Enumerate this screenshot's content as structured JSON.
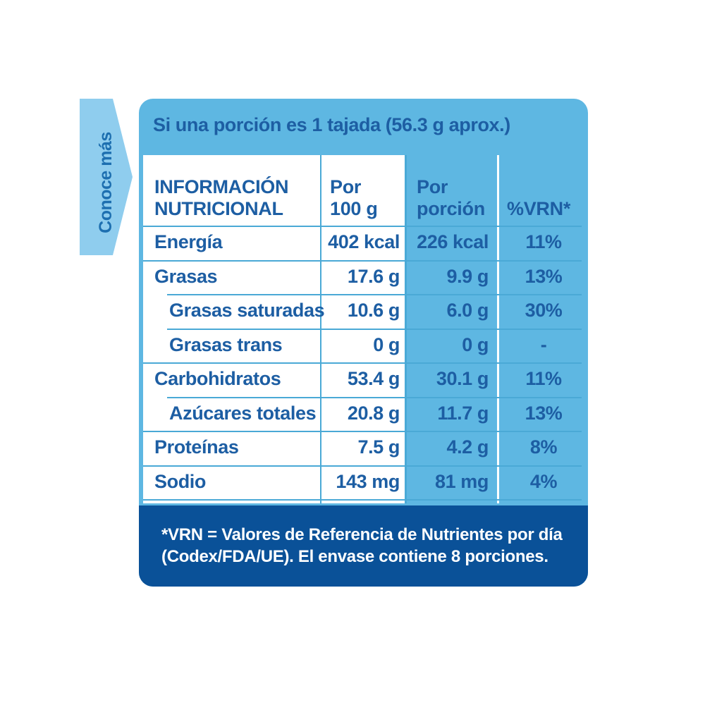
{
  "side_tab": {
    "label": "Conoce más"
  },
  "panel": {
    "title": "Si una porción es 1 tajada (56.3 g aprox.)"
  },
  "table": {
    "headers": {
      "nutrient": [
        "INFORMACIÓN",
        "NUTRICIONAL"
      ],
      "per_100g": [
        "Por",
        "100 g"
      ],
      "per_portion": [
        "Por",
        "porción"
      ],
      "vrn": "%VRN*"
    },
    "rows": [
      {
        "name": "Energía",
        "indent": false,
        "per_100g": "402 kcal",
        "per_portion": "226 kcal",
        "vrn": "11%"
      },
      {
        "name": "Grasas",
        "indent": false,
        "per_100g": "17.6 g",
        "per_portion": "9.9 g",
        "vrn": "13%"
      },
      {
        "name": "Grasas saturadas",
        "indent": true,
        "per_100g": "10.6 g",
        "per_portion": "6.0 g",
        "vrn": "30%"
      },
      {
        "name": "Grasas trans",
        "indent": true,
        "per_100g": "0 g",
        "per_portion": "0 g",
        "vrn": "-"
      },
      {
        "name": "Carbohidratos",
        "indent": false,
        "per_100g": "53.4 g",
        "per_portion": "30.1 g",
        "vrn": "11%"
      },
      {
        "name": "Azúcares totales",
        "indent": true,
        "per_100g": "20.8 g",
        "per_portion": "11.7 g",
        "vrn": "13%"
      },
      {
        "name": "Proteínas",
        "indent": false,
        "per_100g": "7.5 g",
        "per_portion": "4.2 g",
        "vrn": "8%"
      },
      {
        "name": "Sodio",
        "indent": false,
        "per_100g": "143 mg",
        "per_portion": "81 mg",
        "vrn": "4%"
      }
    ]
  },
  "footer": {
    "lines": [
      "*VRN = Valores de Referencia de Nutrientes por día",
      "(Codex/FDA/UE). El envase contiene 8 porciones."
    ]
  },
  "colors": {
    "light_blue": "#5eb7e2",
    "tab_blue": "#8fcdee",
    "text_blue": "#1d5ea3",
    "footer_blue": "#0a5198",
    "line_blue": "#4aa9d6"
  }
}
